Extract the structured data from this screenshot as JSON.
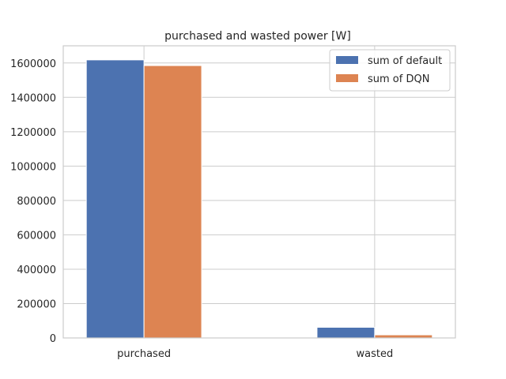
{
  "chart_data": {
    "type": "bar",
    "title": "purchased and wasted power [W]",
    "xlabel": "",
    "ylabel": "",
    "categories": [
      "purchased",
      "wasted"
    ],
    "series": [
      {
        "name": "sum of default",
        "color": "#4c72b0",
        "values": [
          1618000,
          62000
        ]
      },
      {
        "name": "sum of DQN",
        "color": "#dd8452",
        "values": [
          1585000,
          18000
        ]
      }
    ],
    "ylim": [
      0,
      1700000
    ],
    "yticks": [
      0,
      200000,
      400000,
      600000,
      800000,
      1000000,
      1200000,
      1400000,
      1600000
    ],
    "grid": true,
    "legend_position": "top-right"
  }
}
